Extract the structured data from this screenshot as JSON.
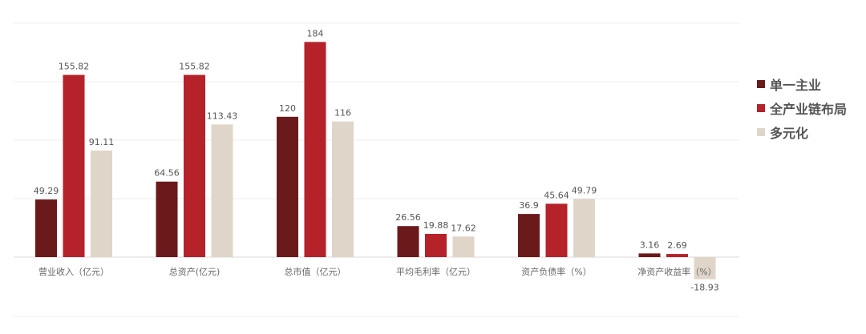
{
  "chart_data": {
    "type": "bar",
    "categories": [
      "营业收入（亿元）",
      "总资产(亿元)",
      "总市值（亿元）",
      "平均毛利率（亿元）",
      "资产负债率（%）",
      "净资产收益率（%）"
    ],
    "series": [
      {
        "name": "单一主业",
        "color": "#6b1a1c",
        "values": [
          49.29,
          64.56,
          120,
          26.56,
          36.9,
          3.16
        ]
      },
      {
        "name": "全产业链布局",
        "color": "#b5222a",
        "values": [
          155.82,
          155.82,
          184,
          19.88,
          45.64,
          2.69
        ]
      },
      {
        "name": "多元化",
        "color": "#dfd6c9",
        "values": [
          91.11,
          113.43,
          116,
          17.62,
          49.79,
          -18.93
        ]
      }
    ],
    "data_labels": [
      [
        "49.29",
        "64.56",
        "120",
        "26.56",
        "36.9",
        "3.16"
      ],
      [
        "155.82",
        "155.82",
        "184",
        "19.88",
        "45.64",
        "2.69"
      ],
      [
        "91.11",
        "113.43",
        "116",
        "17.62",
        "49.79",
        "-18.93"
      ]
    ],
    "ylim": [
      -24,
      200
    ],
    "grid": true,
    "legend_position": "right"
  }
}
